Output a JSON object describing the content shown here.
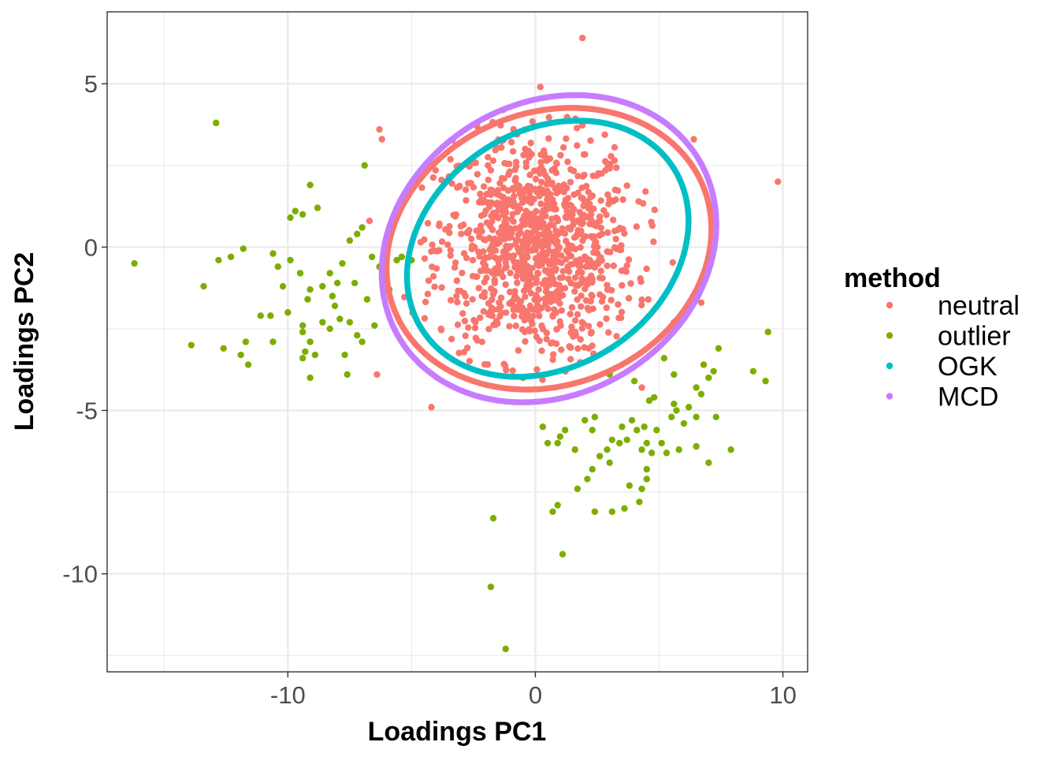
{
  "chart_data": {
    "type": "scatter",
    "xlabel": "Loadings PC1",
    "ylabel": "Loadings PC2",
    "xlim": [
      -17.3,
      11.0
    ],
    "ylim": [
      -13.0,
      7.2
    ],
    "x_ticks": [
      -10,
      0,
      10
    ],
    "y_ticks": [
      5,
      0,
      -5,
      -10
    ],
    "x_tick_labels": [
      "-10",
      "0",
      "10"
    ],
    "y_tick_labels": [
      "5",
      "0",
      "-5",
      "-10"
    ],
    "grid": true,
    "legend": {
      "title": "method",
      "position": "right",
      "entries": [
        {
          "label": "neutral",
          "color": "#F8766D"
        },
        {
          "label": "outlier",
          "color": "#7CAE00"
        },
        {
          "label": "OGK",
          "color": "#00BFC4"
        },
        {
          "label": "MCD",
          "color": "#C77CFF"
        }
      ]
    },
    "series": [
      {
        "name": "neutral",
        "color": "#F8766D",
        "generated": {
          "count": 1000,
          "center": [
            0,
            0
          ],
          "sd": [
            2.0,
            1.7
          ]
        },
        "points": [
          [
            1.9,
            6.4
          ],
          [
            0.2,
            4.9
          ],
          [
            -6.3,
            3.6
          ],
          [
            -6.2,
            3.3
          ],
          [
            6.4,
            3.3
          ],
          [
            9.8,
            2.0
          ],
          [
            -6.7,
            0.8
          ],
          [
            -4.2,
            -4.9
          ],
          [
            -6.4,
            -3.9
          ],
          [
            6.7,
            -1.7
          ],
          [
            5.6,
            -2.3
          ],
          [
            4.3,
            -4.3
          ],
          [
            -1.3,
            4.2
          ]
        ]
      },
      {
        "name": "outlier",
        "color": "#7CAE00",
        "points": [
          [
            -12.9,
            3.8
          ],
          [
            -16.2,
            -0.5
          ],
          [
            -13.4,
            -1.2
          ],
          [
            -12.8,
            -0.4
          ],
          [
            -12.3,
            -0.3
          ],
          [
            -11.8,
            -0.05
          ],
          [
            -10.6,
            -0.2
          ],
          [
            -10.4,
            -0.6
          ],
          [
            -10.2,
            -1.2
          ],
          [
            -9.9,
            -0.4
          ],
          [
            -9.5,
            -0.8
          ],
          [
            -9.1,
            -1.3
          ],
          [
            -9.9,
            0.9
          ],
          [
            -9.7,
            1.1
          ],
          [
            -9.4,
            1.0
          ],
          [
            -9.1,
            1.9
          ],
          [
            -8.8,
            1.2
          ],
          [
            -10.0,
            -2.0
          ],
          [
            -10.7,
            -2.1
          ],
          [
            -11.1,
            -2.1
          ],
          [
            -11.7,
            -2.9
          ],
          [
            -11.9,
            -3.3
          ],
          [
            -11.6,
            -3.6
          ],
          [
            -13.9,
            -3.0
          ],
          [
            -12.6,
            -3.1
          ],
          [
            -10.6,
            -2.9
          ],
          [
            -9.4,
            -2.4
          ],
          [
            -9.1,
            -2.9
          ],
          [
            -9.4,
            -2.6
          ],
          [
            -9.3,
            -3.2
          ],
          [
            -8.9,
            -3.3
          ],
          [
            -8.6,
            -2.3
          ],
          [
            -8.1,
            -1.8
          ],
          [
            -8.3,
            -2.5
          ],
          [
            -7.9,
            -2.2
          ],
          [
            -7.7,
            -3.3
          ],
          [
            -7.5,
            -2.3
          ],
          [
            -7.2,
            -2.7
          ],
          [
            -7.0,
            -2.9
          ],
          [
            -7.6,
            -3.9
          ],
          [
            -9.1,
            -4.0
          ],
          [
            -9.4,
            -3.4
          ],
          [
            -8.3,
            -0.8
          ],
          [
            -8.0,
            -1.1
          ],
          [
            -7.8,
            -0.5
          ],
          [
            -7.5,
            0.2
          ],
          [
            -7.2,
            0.4
          ],
          [
            -7.0,
            0.6
          ],
          [
            -6.9,
            2.5
          ],
          [
            -6.6,
            -0.3
          ],
          [
            -6.3,
            -0.6
          ],
          [
            -6.1,
            -1.0
          ],
          [
            -5.9,
            -1.3
          ],
          [
            -5.6,
            -0.4
          ],
          [
            -5.4,
            -0.3
          ],
          [
            -5.0,
            -0.4
          ],
          [
            -6.8,
            -1.6
          ],
          [
            -7.3,
            -1.1
          ],
          [
            -6.5,
            -2.4
          ],
          [
            -8.6,
            -1.2
          ],
          [
            -8.2,
            -1.5
          ],
          [
            -9.2,
            -1.6
          ],
          [
            0.3,
            -5.5
          ],
          [
            0.5,
            -6.0
          ],
          [
            0.9,
            -6.0
          ],
          [
            1.0,
            -5.8
          ],
          [
            1.2,
            -5.6
          ],
          [
            1.6,
            -6.2
          ],
          [
            2.0,
            -5.3
          ],
          [
            2.3,
            -5.6
          ],
          [
            2.4,
            -5.2
          ],
          [
            2.6,
            -6.4
          ],
          [
            2.9,
            -6.2
          ],
          [
            3.0,
            -6.6
          ],
          [
            3.1,
            -5.9
          ],
          [
            3.4,
            -6.0
          ],
          [
            3.5,
            -5.5
          ],
          [
            3.7,
            -5.9
          ],
          [
            3.9,
            -5.3
          ],
          [
            4.1,
            -5.6
          ],
          [
            4.3,
            -6.2
          ],
          [
            4.4,
            -5.5
          ],
          [
            4.5,
            -6.0
          ],
          [
            4.7,
            -6.3
          ],
          [
            4.9,
            -5.6
          ],
          [
            5.1,
            -6.0
          ],
          [
            5.3,
            -6.3
          ],
          [
            5.5,
            -5.2
          ],
          [
            5.7,
            -5.0
          ],
          [
            6.0,
            -5.4
          ],
          [
            6.2,
            -4.9
          ],
          [
            6.5,
            -5.2
          ],
          [
            6.7,
            -4.5
          ],
          [
            7.0,
            -4.0
          ],
          [
            7.2,
            -3.8
          ],
          [
            7.4,
            -3.1
          ],
          [
            6.8,
            -3.6
          ],
          [
            6.5,
            -4.3
          ],
          [
            5.6,
            -3.9
          ],
          [
            5.2,
            -3.4
          ],
          [
            4.8,
            -4.6
          ],
          [
            4.6,
            -4.7
          ],
          [
            5.6,
            -4.8
          ],
          [
            7.3,
            -5.2
          ],
          [
            7.9,
            -6.2
          ],
          [
            8.8,
            -3.8
          ],
          [
            9.3,
            -4.1
          ],
          [
            9.4,
            -2.6
          ],
          [
            6.5,
            -6.1
          ],
          [
            7.0,
            -6.6
          ],
          [
            5.8,
            -6.2
          ],
          [
            4.5,
            -6.8
          ],
          [
            4.5,
            -7.1
          ],
          [
            4.3,
            -7.4
          ],
          [
            3.8,
            -7.3
          ],
          [
            2.3,
            -6.8
          ],
          [
            2.1,
            -7.1
          ],
          [
            1.7,
            -7.4
          ],
          [
            0.9,
            -7.9
          ],
          [
            0.7,
            -8.1
          ],
          [
            2.4,
            -8.1
          ],
          [
            3.1,
            -8.1
          ],
          [
            3.6,
            -8.0
          ],
          [
            4.2,
            -7.8
          ],
          [
            -1.7,
            -8.3
          ],
          [
            1.1,
            -9.4
          ],
          [
            -1.8,
            -10.4
          ],
          [
            -1.2,
            -12.3
          ],
          [
            -0.5,
            -4.0
          ],
          [
            3.0,
            -3.9
          ],
          [
            4.0,
            -4.1
          ]
        ]
      }
    ],
    "ellipses": [
      {
        "name": "neutral",
        "color": "#F8766D",
        "center": [
          0.55,
          -0.05
        ],
        "theta_deg": 30,
        "vertices": [
          [
            -6.5,
            -0.3
          ],
          [
            6.6,
            0.3
          ],
          [
            0.4,
            4.2
          ],
          [
            -0.5,
            -4.4
          ]
        ]
      },
      {
        "name": "OGK",
        "color": "#00BFC4",
        "center": [
          0.5,
          -0.05
        ],
        "theta_deg": 30,
        "vertices": [
          [
            -5.7,
            -0.5
          ],
          [
            5.6,
            0.3
          ],
          [
            0.7,
            3.9
          ],
          [
            -0.6,
            -3.9
          ]
        ]
      },
      {
        "name": "MCD",
        "color": "#C77CFF",
        "center": [
          0.55,
          -0.05
        ],
        "theta_deg": 30,
        "vertices": [
          [
            -6.8,
            -0.5
          ],
          [
            6.7,
            0.5
          ],
          [
            0.2,
            4.65
          ],
          [
            -0.5,
            -4.7
          ]
        ]
      }
    ]
  }
}
